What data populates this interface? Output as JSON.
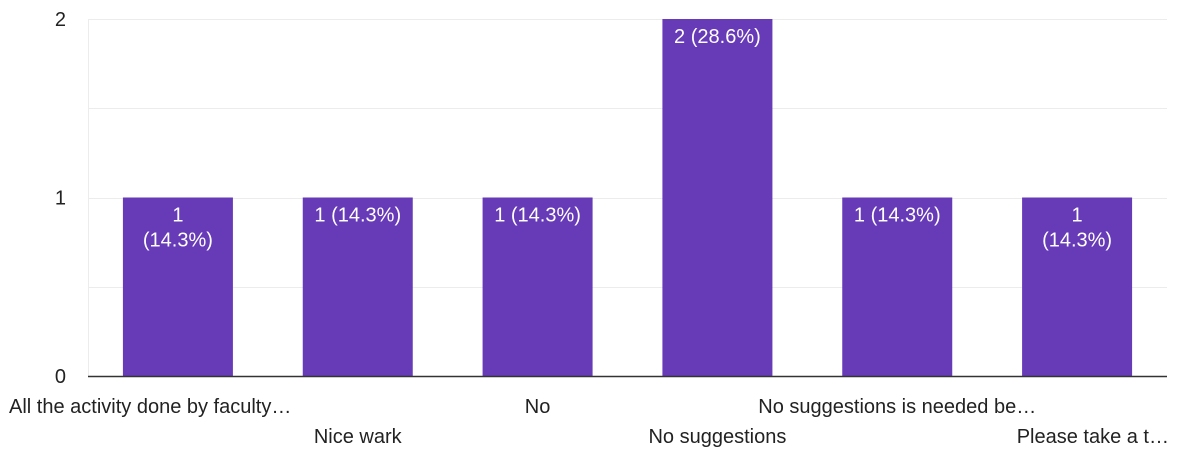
{
  "chart_data": {
    "type": "bar",
    "categories": [
      "All the activity done by faculty…",
      "Nice wark",
      "No",
      "No suggestions",
      "No suggestions is needed be…",
      "Please take a t…"
    ],
    "values": [
      1,
      1,
      1,
      2,
      1,
      1
    ],
    "data_labels": [
      [
        "1",
        "(14.3%)"
      ],
      [
        "1 (14.3%)"
      ],
      [
        "1 (14.3%)"
      ],
      [
        "2 (28.6%)"
      ],
      [
        "1 (14.3%)"
      ],
      [
        "1",
        "(14.3%)"
      ]
    ],
    "y_ticks": [
      "0",
      "1",
      "2"
    ],
    "ylim": [
      0,
      2
    ],
    "grid": true,
    "bar_color": "#673ab7",
    "grid_color": "#ececec",
    "axis_color": "#333333"
  }
}
